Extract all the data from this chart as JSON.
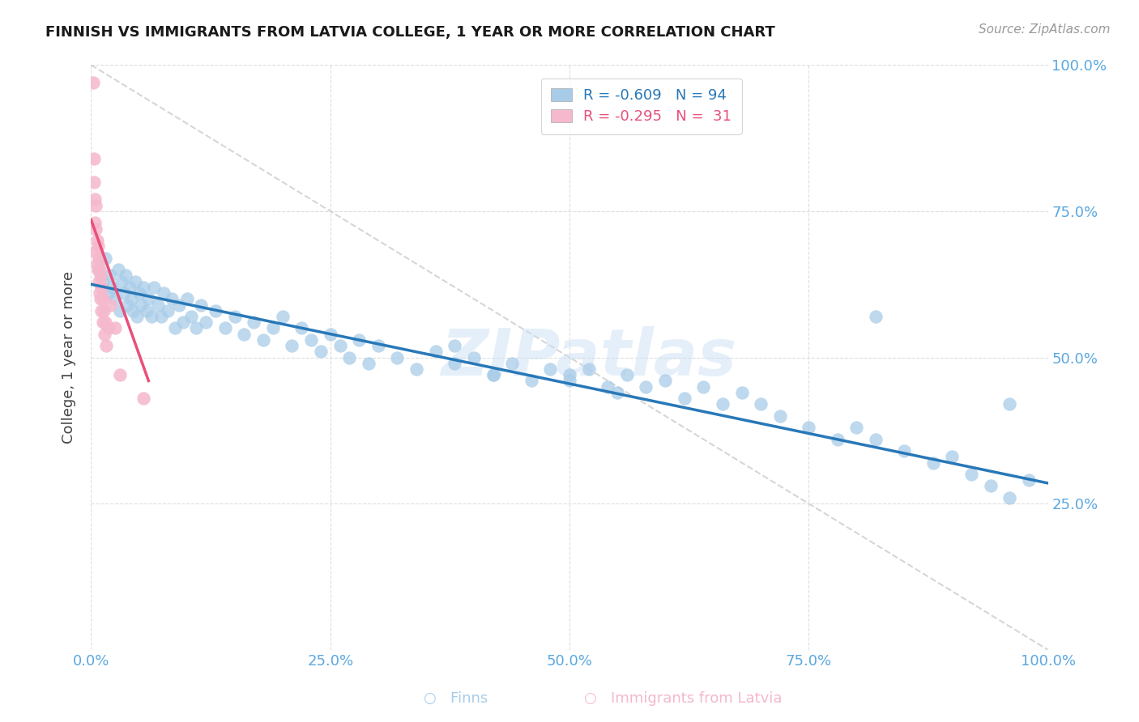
{
  "title": "FINNISH VS IMMIGRANTS FROM LATVIA COLLEGE, 1 YEAR OR MORE CORRELATION CHART",
  "source_text": "Source: ZipAtlas.com",
  "ylabel": "College, 1 year or more",
  "r_finns": -0.609,
  "n_finns": 94,
  "r_latvia": -0.295,
  "n_latvia": 31,
  "blue_scatter_color": "#a8cce8",
  "pink_scatter_color": "#f5b8cc",
  "blue_line_color": "#2878b8",
  "pink_line_color": "#e8507a",
  "ref_line_color": "#cccccc",
  "watermark": "ZIPatlas",
  "finns_x": [
    0.008,
    0.012,
    0.015,
    0.018,
    0.02,
    0.022,
    0.025,
    0.028,
    0.03,
    0.032,
    0.034,
    0.036,
    0.038,
    0.04,
    0.042,
    0.044,
    0.046,
    0.048,
    0.05,
    0.052,
    0.055,
    0.058,
    0.06,
    0.063,
    0.066,
    0.07,
    0.073,
    0.076,
    0.08,
    0.084,
    0.088,
    0.092,
    0.096,
    0.1,
    0.105,
    0.11,
    0.115,
    0.12,
    0.13,
    0.14,
    0.15,
    0.16,
    0.17,
    0.18,
    0.19,
    0.2,
    0.21,
    0.22,
    0.23,
    0.24,
    0.25,
    0.26,
    0.27,
    0.28,
    0.29,
    0.3,
    0.32,
    0.34,
    0.36,
    0.38,
    0.4,
    0.42,
    0.44,
    0.46,
    0.48,
    0.5,
    0.52,
    0.54,
    0.56,
    0.58,
    0.6,
    0.62,
    0.64,
    0.66,
    0.68,
    0.7,
    0.72,
    0.75,
    0.78,
    0.8,
    0.82,
    0.85,
    0.88,
    0.9,
    0.92,
    0.94,
    0.96,
    0.98,
    0.5,
    0.38,
    0.55,
    0.42,
    0.82,
    0.96
  ],
  "finns_y": [
    0.65,
    0.63,
    0.67,
    0.61,
    0.64,
    0.62,
    0.6,
    0.65,
    0.58,
    0.63,
    0.61,
    0.64,
    0.59,
    0.62,
    0.6,
    0.58,
    0.63,
    0.57,
    0.61,
    0.59,
    0.62,
    0.58,
    0.6,
    0.57,
    0.62,
    0.59,
    0.57,
    0.61,
    0.58,
    0.6,
    0.55,
    0.59,
    0.56,
    0.6,
    0.57,
    0.55,
    0.59,
    0.56,
    0.58,
    0.55,
    0.57,
    0.54,
    0.56,
    0.53,
    0.55,
    0.57,
    0.52,
    0.55,
    0.53,
    0.51,
    0.54,
    0.52,
    0.5,
    0.53,
    0.49,
    0.52,
    0.5,
    0.48,
    0.51,
    0.49,
    0.5,
    0.47,
    0.49,
    0.46,
    0.48,
    0.46,
    0.48,
    0.45,
    0.47,
    0.45,
    0.46,
    0.43,
    0.45,
    0.42,
    0.44,
    0.42,
    0.4,
    0.38,
    0.36,
    0.38,
    0.36,
    0.34,
    0.32,
    0.33,
    0.3,
    0.28,
    0.26,
    0.29,
    0.47,
    0.52,
    0.44,
    0.47,
    0.57,
    0.42
  ],
  "latvia_x": [
    0.002,
    0.003,
    0.003,
    0.004,
    0.004,
    0.005,
    0.005,
    0.005,
    0.006,
    0.006,
    0.007,
    0.007,
    0.008,
    0.008,
    0.009,
    0.009,
    0.01,
    0.01,
    0.011,
    0.011,
    0.012,
    0.012,
    0.013,
    0.014,
    0.015,
    0.016,
    0.018,
    0.02,
    0.025,
    0.03,
    0.055
  ],
  "latvia_y": [
    0.97,
    0.84,
    0.8,
    0.77,
    0.73,
    0.76,
    0.72,
    0.68,
    0.7,
    0.66,
    0.69,
    0.65,
    0.67,
    0.63,
    0.65,
    0.61,
    0.64,
    0.6,
    0.62,
    0.58,
    0.6,
    0.56,
    0.58,
    0.54,
    0.56,
    0.52,
    0.55,
    0.59,
    0.55,
    0.47,
    0.43
  ],
  "blue_trendline_x": [
    0.0,
    1.0
  ],
  "blue_trendline_y": [
    0.625,
    0.285
  ],
  "pink_trendline_x": [
    0.0,
    0.06
  ],
  "pink_trendline_y": [
    0.735,
    0.46
  ],
  "ref_line_x": [
    0.0,
    1.0
  ],
  "ref_line_y": [
    1.0,
    0.0
  ],
  "xlim": [
    0.0,
    1.0
  ],
  "ylim": [
    0.0,
    1.0
  ],
  "xticks": [
    0.0,
    0.25,
    0.5,
    0.75,
    1.0
  ],
  "xticklabels": [
    "0.0%",
    "25.0%",
    "50.0%",
    "75.0%",
    "100.0%"
  ],
  "yticks_right": [
    0.25,
    0.5,
    0.75,
    1.0
  ],
  "yticklabels_right": [
    "25.0%",
    "50.0%",
    "75.0%",
    "100.0%"
  ],
  "tick_color": "#5aa8e0",
  "grid_color": "#dddddd",
  "title_fontsize": 13,
  "label_fontsize": 13,
  "ylabel_fontsize": 13
}
